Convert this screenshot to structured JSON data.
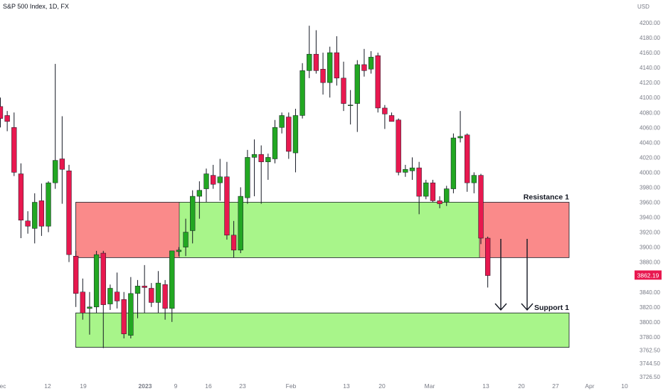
{
  "header": {
    "title": "S&P 500 Index, 1D, FX",
    "currency": "USD"
  },
  "colors": {
    "up": "#22a722",
    "down": "#e8184f",
    "wick": "#131722",
    "resistance": "#fa8a8a",
    "support": "#a8f58a",
    "price_badge": "#e8184f",
    "axis_text": "#787b86"
  },
  "chart_data": {
    "type": "candlestick",
    "title": "S&P 500 Index, 1D, FX",
    "y_axis": {
      "ticks": [
        3726.5,
        3744.5,
        3762.5,
        3780,
        3800,
        3820,
        3840,
        3860,
        3880,
        3900,
        3920,
        3940,
        3960,
        3980,
        4000,
        4020,
        4040,
        4060,
        4080,
        4100,
        4120,
        4140,
        4160,
        4180,
        4200
      ],
      "tick_labels": [
        "3726.50",
        "3744.50",
        "3762.50",
        "3780.00",
        "3800.00",
        "3820.00",
        "3840.00",
        "3860.00",
        "3880.00",
        "3900.00",
        "3920.00",
        "3940.00",
        "3960.00",
        "3980.00",
        "4000.00",
        "4020.00",
        "4040.00",
        "4060.00",
        "4080.00",
        "4100.00",
        "4120.00",
        "4140.00",
        "4160.00",
        "4180.00",
        "4200.00"
      ]
    },
    "x_axis": {
      "labels": [
        "ec",
        "12",
        "19",
        "2023",
        "9",
        "16",
        "23",
        "Feb",
        "13",
        "20",
        "Mar",
        "13",
        "20",
        "27",
        "Apr",
        "10"
      ]
    },
    "last_price": "3862.19",
    "candles": [
      {
        "o": 4088,
        "h": 4100,
        "l": 4060,
        "c": 4072
      },
      {
        "o": 4076,
        "h": 4082,
        "l": 4055,
        "c": 4068
      },
      {
        "o": 4060,
        "h": 4080,
        "l": 3995,
        "c": 4000
      },
      {
        "o": 3998,
        "h": 4012,
        "l": 3912,
        "c": 3936
      },
      {
        "o": 3935,
        "h": 3948,
        "l": 3918,
        "c": 3928
      },
      {
        "o": 3925,
        "h": 3972,
        "l": 3905,
        "c": 3960
      },
      {
        "o": 3962,
        "h": 3985,
        "l": 3915,
        "c": 3928
      },
      {
        "o": 3928,
        "h": 3988,
        "l": 3920,
        "c": 3986
      },
      {
        "o": 3986,
        "h": 4145,
        "l": 3978,
        "c": 4016
      },
      {
        "o": 4018,
        "h": 4075,
        "l": 3958,
        "c": 4004
      },
      {
        "o": 4002,
        "h": 4010,
        "l": 3880,
        "c": 3890
      },
      {
        "o": 3888,
        "h": 3895,
        "l": 3820,
        "c": 3838
      },
      {
        "o": 3840,
        "h": 3858,
        "l": 3803,
        "c": 3812
      },
      {
        "o": 3818,
        "h": 3840,
        "l": 3783,
        "c": 3820
      },
      {
        "o": 3820,
        "h": 3895,
        "l": 3812,
        "c": 3890
      },
      {
        "o": 3892,
        "h": 3895,
        "l": 3765,
        "c": 3823
      },
      {
        "o": 3824,
        "h": 3850,
        "l": 3816,
        "c": 3845
      },
      {
        "o": 3840,
        "h": 3866,
        "l": 3818,
        "c": 3828
      },
      {
        "o": 3830,
        "h": 3840,
        "l": 3778,
        "c": 3784
      },
      {
        "o": 3782,
        "h": 3860,
        "l": 3778,
        "c": 3838
      },
      {
        "o": 3838,
        "h": 3856,
        "l": 3805,
        "c": 3848
      },
      {
        "o": 3848,
        "h": 3876,
        "l": 3812,
        "c": 3846
      },
      {
        "o": 3845,
        "h": 3852,
        "l": 3820,
        "c": 3826
      },
      {
        "o": 3826,
        "h": 3868,
        "l": 3812,
        "c": 3852
      },
      {
        "o": 3850,
        "h": 3856,
        "l": 3803,
        "c": 3818
      },
      {
        "o": 3818,
        "h": 3895,
        "l": 3800,
        "c": 3895
      },
      {
        "o": 3894,
        "h": 3900,
        "l": 3888,
        "c": 3896
      },
      {
        "o": 3900,
        "h": 3938,
        "l": 3888,
        "c": 3920
      },
      {
        "o": 3922,
        "h": 3976,
        "l": 3905,
        "c": 3968
      },
      {
        "o": 3968,
        "h": 3988,
        "l": 3938,
        "c": 3976
      },
      {
        "o": 3978,
        "h": 4005,
        "l": 3960,
        "c": 3998
      },
      {
        "o": 3996,
        "h": 4010,
        "l": 3978,
        "c": 3984
      },
      {
        "o": 3986,
        "h": 4018,
        "l": 3962,
        "c": 3994
      },
      {
        "o": 3994,
        "h": 4014,
        "l": 3910,
        "c": 3916
      },
      {
        "o": 3916,
        "h": 3935,
        "l": 3886,
        "c": 3896
      },
      {
        "o": 3896,
        "h": 3980,
        "l": 3892,
        "c": 3968
      },
      {
        "o": 3966,
        "h": 4030,
        "l": 3958,
        "c": 4020
      },
      {
        "o": 4020,
        "h": 4044,
        "l": 3968,
        "c": 4024
      },
      {
        "o": 4024,
        "h": 4036,
        "l": 3958,
        "c": 4014
      },
      {
        "o": 4014,
        "h": 4025,
        "l": 3990,
        "c": 4020
      },
      {
        "o": 4018,
        "h": 4070,
        "l": 4012,
        "c": 4060
      },
      {
        "o": 4060,
        "h": 4080,
        "l": 4052,
        "c": 4076
      },
      {
        "o": 4074,
        "h": 4080,
        "l": 4018,
        "c": 4028
      },
      {
        "o": 4026,
        "h": 4085,
        "l": 4000,
        "c": 4076
      },
      {
        "o": 4076,
        "h": 4146,
        "l": 4072,
        "c": 4136
      },
      {
        "o": 4136,
        "h": 4196,
        "l": 4126,
        "c": 4158
      },
      {
        "o": 4158,
        "h": 4190,
        "l": 4132,
        "c": 4136
      },
      {
        "o": 4138,
        "h": 4160,
        "l": 4104,
        "c": 4120
      },
      {
        "o": 4120,
        "h": 4168,
        "l": 4100,
        "c": 4160
      },
      {
        "o": 4160,
        "h": 4182,
        "l": 4116,
        "c": 4126
      },
      {
        "o": 4126,
        "h": 4148,
        "l": 4082,
        "c": 4092
      },
      {
        "o": 4090,
        "h": 4110,
        "l": 4064,
        "c": 4090
      },
      {
        "o": 4092,
        "h": 4150,
        "l": 4054,
        "c": 4144
      },
      {
        "o": 4144,
        "h": 4165,
        "l": 4128,
        "c": 4136
      },
      {
        "o": 4138,
        "h": 4162,
        "l": 4132,
        "c": 4154
      },
      {
        "o": 4156,
        "h": 4160,
        "l": 4080,
        "c": 4086
      },
      {
        "o": 4086,
        "h": 4090,
        "l": 4058,
        "c": 4078
      },
      {
        "o": 4076,
        "h": 4080,
        "l": 4068,
        "c": 4068
      },
      {
        "o": 4070,
        "h": 4072,
        "l": 3996,
        "c": 4000
      },
      {
        "o": 4000,
        "h": 4010,
        "l": 3994,
        "c": 4004
      },
      {
        "o": 4002,
        "h": 4020,
        "l": 3990,
        "c": 4006
      },
      {
        "o": 4006,
        "h": 4014,
        "l": 3944,
        "c": 3968
      },
      {
        "o": 3968,
        "h": 3990,
        "l": 3964,
        "c": 3986
      },
      {
        "o": 3986,
        "h": 3990,
        "l": 3960,
        "c": 3962
      },
      {
        "o": 3962,
        "h": 3968,
        "l": 3952,
        "c": 3958
      },
      {
        "o": 3960,
        "h": 3982,
        "l": 3955,
        "c": 3978
      },
      {
        "o": 3978,
        "h": 4052,
        "l": 3972,
        "c": 4046
      },
      {
        "o": 4046,
        "h": 4082,
        "l": 4040,
        "c": 4048
      },
      {
        "o": 4050,
        "h": 4052,
        "l": 3974,
        "c": 3986
      },
      {
        "o": 3986,
        "h": 4000,
        "l": 3972,
        "c": 3996
      },
      {
        "o": 3996,
        "h": 3998,
        "l": 3904,
        "c": 3912
      },
      {
        "o": 3912,
        "h": 3914,
        "l": 3846,
        "c": 3862
      }
    ],
    "zones": [
      {
        "name": "Resistance 1",
        "low": 3886,
        "high": 3960,
        "color": "#fa8a8a",
        "x_start": 15,
        "x_end": 110
      },
      {
        "name": "Support 1",
        "low": 3766,
        "high": 3812,
        "color": "#a8f58a",
        "x_start": 15,
        "x_end": 110
      }
    ],
    "annotations": [
      "Resistance 1",
      "Support 1"
    ]
  }
}
